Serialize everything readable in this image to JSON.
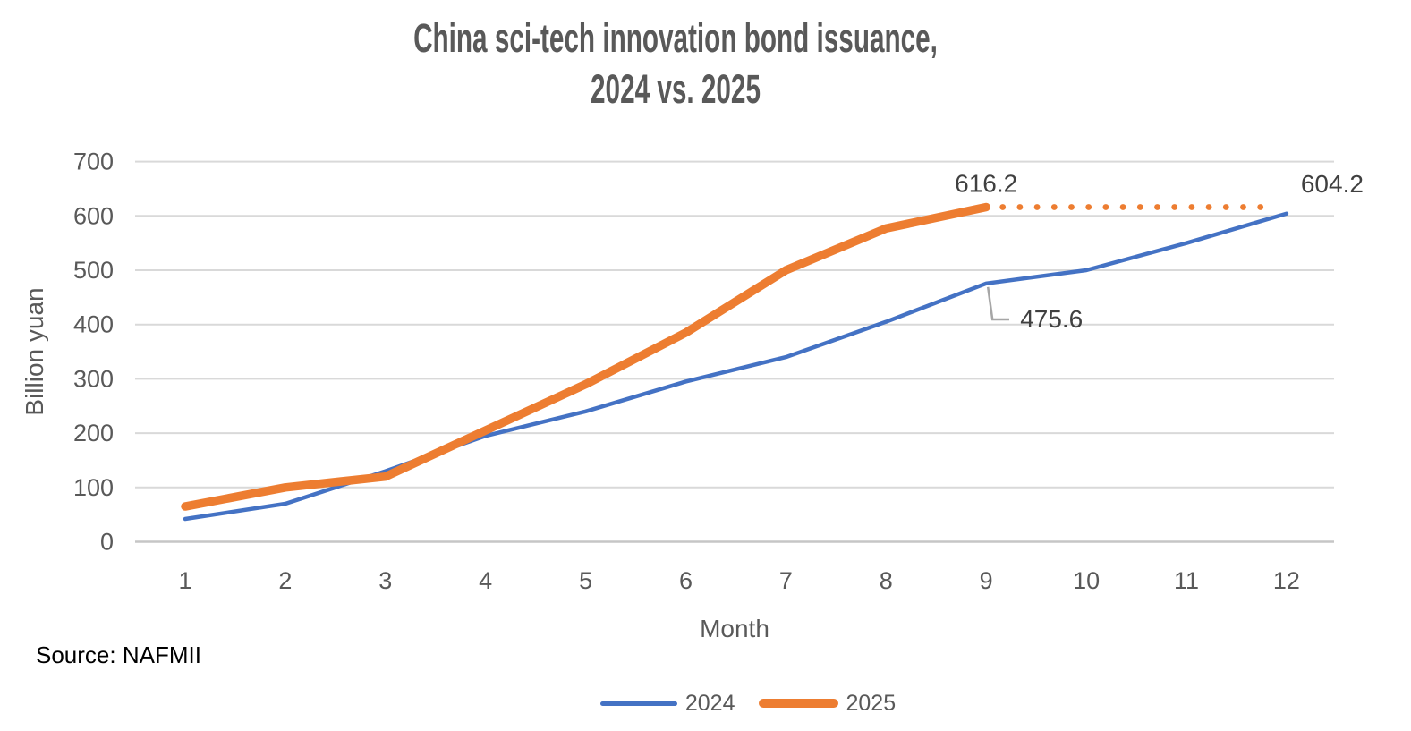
{
  "title": {
    "line1": "China sci-tech innovation bond issuance,",
    "line2": "2024 vs. 2025"
  },
  "source_note": "Source: NAFMII",
  "colors": {
    "series_2024": "#4472C4",
    "series_2025": "#ED7D31",
    "gridline": "#D9D9D9",
    "axis_line": "#C6C6C6",
    "axis_text": "#595959",
    "annotation_text": "#404040",
    "callout_line": "#A6A6A6",
    "title_text": "#595959"
  },
  "chart_data": {
    "type": "line",
    "title": "China sci-tech innovation bond issuance, 2024 vs. 2025",
    "xlabel": "Month",
    "ylabel": "Billion yuan",
    "x": [
      1,
      2,
      3,
      4,
      5,
      6,
      7,
      8,
      9,
      10,
      11,
      12
    ],
    "ylim": [
      0,
      700
    ],
    "y_tick_step": 100,
    "grid": true,
    "legend_position": "bottom",
    "series": [
      {
        "name": "2024",
        "color": "#4472C4",
        "stroke_width": 4.5,
        "values": [
          42,
          70,
          130,
          195,
          240,
          295,
          340,
          405,
          475.6,
          500,
          550,
          604.2
        ]
      },
      {
        "name": "2025",
        "color": "#ED7D31",
        "stroke_width": 9.5,
        "values": [
          65,
          100,
          120,
          205,
          290,
          385,
          500,
          577,
          616.2
        ]
      }
    ],
    "projection": {
      "series": "2025",
      "style": "dotted",
      "value": 616.2,
      "from_month": 9,
      "to_month": 12
    },
    "annotations": [
      {
        "text": "616.2",
        "series": "2025",
        "month": 9,
        "value": 616.2,
        "placement": "above"
      },
      {
        "text": "604.2",
        "series": "2024",
        "month": 12,
        "value": 604.2,
        "placement": "above-right"
      },
      {
        "text": "475.6",
        "series": "2024",
        "month": 9,
        "value": 475.6,
        "placement": "callout-below-right"
      }
    ]
  }
}
